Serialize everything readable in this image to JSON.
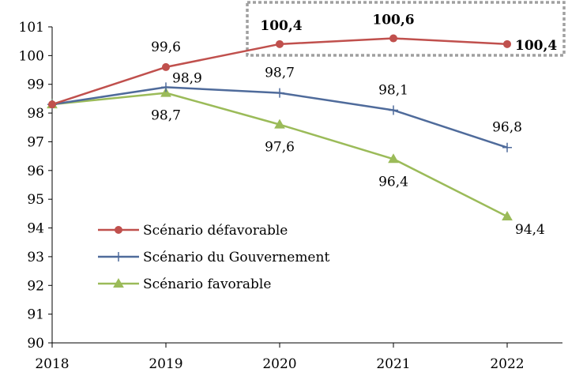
{
  "chart_data": {
    "type": "line",
    "title": "",
    "xlabel": "",
    "ylabel": "",
    "categories": [
      "2018",
      "2019",
      "2020",
      "2021",
      "2022"
    ],
    "ylim": [
      90,
      101
    ],
    "yticks": [
      90,
      91,
      92,
      93,
      94,
      95,
      96,
      97,
      98,
      99,
      100,
      101
    ],
    "grid": false,
    "legend_position": "bottom-left",
    "highlight": {
      "style": "dashed-box",
      "years": [
        "2020",
        "2021",
        "2022"
      ],
      "series": "Scénario défavorable"
    },
    "series": [
      {
        "name": "Scénario défavorable",
        "color": "#C0504D",
        "marker": "circle",
        "values": [
          98.3,
          99.6,
          100.4,
          100.6,
          100.4
        ],
        "labels": [
          "",
          "99,6",
          "100,4",
          "100,6",
          "100,4"
        ],
        "bold_labels": [
          false,
          false,
          true,
          true,
          true
        ]
      },
      {
        "name": "Scénario du Gouvernement",
        "color": "#4F6B9B",
        "marker": "plus",
        "values": [
          98.3,
          98.9,
          98.7,
          98.1,
          96.8
        ],
        "labels": [
          "",
          "98,9",
          "98,7",
          "98,1",
          "96,8"
        ]
      },
      {
        "name": "Scénario favorable",
        "color": "#9BBB59",
        "marker": "triangle",
        "values": [
          98.3,
          98.7,
          97.6,
          96.4,
          94.4
        ],
        "labels": [
          "",
          "98,7",
          "97,6",
          "96,4",
          "94,4"
        ]
      }
    ]
  }
}
